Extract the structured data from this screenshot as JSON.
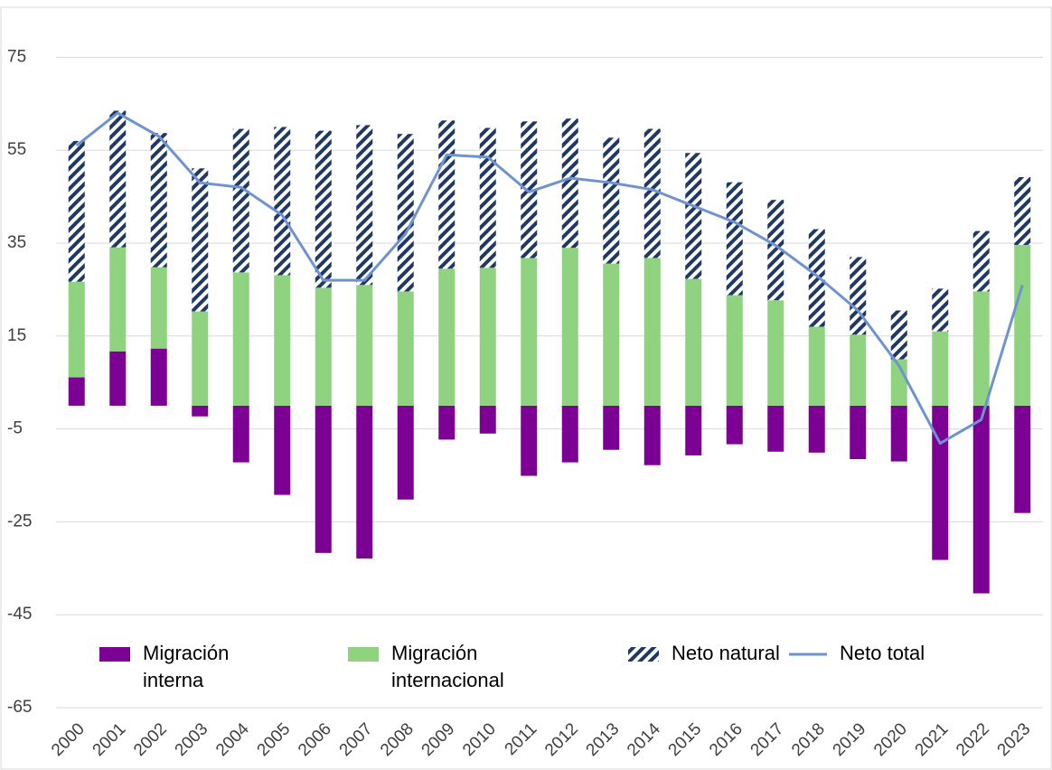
{
  "chart_data": {
    "type": "stacked_bar_line",
    "categories": [
      "2000",
      "2001",
      "2002",
      "2003",
      "2004",
      "2005",
      "2006",
      "2007",
      "2008",
      "2009",
      "2010",
      "2011",
      "2012",
      "2013",
      "2014",
      "2015",
      "2016",
      "2017",
      "2018",
      "2019",
      "2020",
      "2021",
      "2022",
      "2023"
    ],
    "series": [
      {
        "name": "Migración interna",
        "type": "bar",
        "color": "#7b0093",
        "values": [
          6.1,
          11.7,
          12.3,
          -2.3,
          -12.2,
          -19.2,
          -31.7,
          -32.9,
          -20.2,
          -7.3,
          -6.0,
          -15.1,
          -12.2,
          -9.5,
          -12.8,
          -10.7,
          -8.3,
          -9.9,
          -10.1,
          -11.5,
          -12.0,
          -33.2,
          -40.4,
          -23.1
        ]
      },
      {
        "name": "Migración internacional",
        "type": "bar",
        "color": "#8fd27f",
        "values": [
          20.6,
          22.4,
          17.5,
          20.3,
          28.7,
          28.1,
          25.4,
          26.0,
          24.6,
          29.5,
          29.7,
          31.8,
          34.0,
          30.6,
          31.8,
          27.3,
          23.8,
          22.7,
          17.0,
          15.3,
          10.0,
          16.0,
          24.6,
          34.6
        ]
      },
      {
        "name": "Neto natural",
        "type": "bar",
        "pattern": "hatch",
        "color": "#1f3864",
        "values": [
          30.3,
          29.4,
          28.9,
          30.8,
          30.9,
          31.9,
          33.8,
          34.4,
          33.9,
          31.9,
          30.1,
          29.4,
          27.8,
          27.1,
          27.8,
          27.1,
          24.3,
          21.6,
          21.0,
          16.7,
          10.5,
          9.2,
          13.0,
          14.6
        ]
      },
      {
        "name": "Neto total",
        "type": "line",
        "color": "#6f93d0",
        "values": [
          56,
          63,
          58,
          48,
          47,
          41,
          27,
          27,
          37,
          54,
          53.5,
          46,
          49,
          48,
          46.5,
          43,
          39.5,
          34.5,
          28,
          20.5,
          8.6,
          -8.1,
          -3,
          26
        ]
      }
    ],
    "ylim": [
      -65,
      85
    ],
    "yticks": [
      -65,
      -45,
      -25,
      -5,
      15,
      35,
      55,
      75
    ],
    "grid": true
  }
}
